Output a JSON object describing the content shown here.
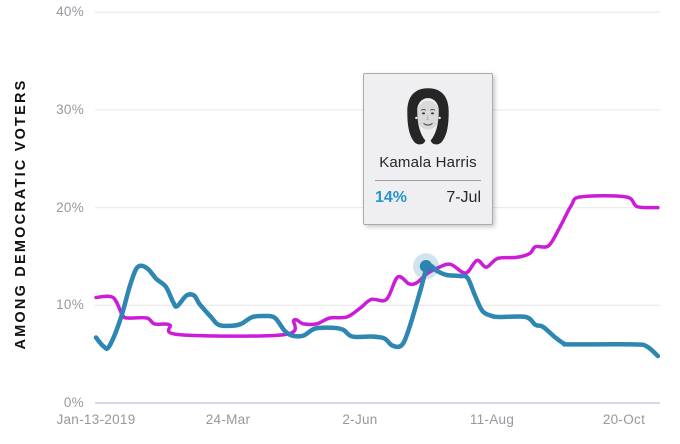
{
  "chart_data": {
    "type": "line",
    "title": "",
    "ylabel": "AMONG DEMOCRATIC VOTERS",
    "xlabel": "",
    "ylim": [
      0,
      40
    ],
    "grid": true,
    "y_ticks": [
      "40%",
      "30%",
      "20%",
      "10%",
      "0%"
    ],
    "y_tick_values": [
      40,
      30,
      20,
      10,
      0
    ],
    "x_unit": "days since Jan-13-2019",
    "x_ticks": [
      {
        "label": "Jan-13-2019",
        "day": 0
      },
      {
        "label": "24-Mar",
        "day": 70
      },
      {
        "label": "2-Jun",
        "day": 140
      },
      {
        "label": "11-Aug",
        "day": 210
      },
      {
        "label": "20-Oct",
        "day": 280
      }
    ],
    "grid_color": "#ececee",
    "zero_line_color": "#d6d9e6",
    "series": [
      {
        "name": "",
        "color": "#cb1dd8",
        "stroke_width": 3.5,
        "points": [
          [
            0,
            10.8
          ],
          [
            9,
            10.8
          ],
          [
            14,
            9.0
          ],
          [
            17,
            8.7
          ],
          [
            27,
            8.7
          ],
          [
            31,
            8.1
          ],
          [
            39,
            8.0
          ],
          [
            44,
            7.0
          ],
          [
            100,
            7.0
          ],
          [
            105,
            8.5
          ],
          [
            110,
            8.1
          ],
          [
            117,
            8.1
          ],
          [
            124,
            8.7
          ],
          [
            133,
            8.8
          ],
          [
            140,
            9.7
          ],
          [
            146,
            10.6
          ],
          [
            154,
            10.6
          ],
          [
            160,
            12.9
          ],
          [
            166,
            12.2
          ],
          [
            170,
            12.3
          ],
          [
            176,
            13.3
          ],
          [
            182,
            13.9
          ],
          [
            188,
            14.2
          ],
          [
            196,
            13.3
          ],
          [
            202,
            14.6
          ],
          [
            207,
            13.9
          ],
          [
            213,
            14.8
          ],
          [
            223,
            14.9
          ],
          [
            230,
            15.3
          ],
          [
            233,
            16.0
          ],
          [
            240,
            16.1
          ],
          [
            246,
            18.0
          ],
          [
            252,
            20.2
          ],
          [
            257,
            21.1
          ],
          [
            281,
            21.1
          ],
          [
            287,
            20.1
          ],
          [
            298,
            20.0
          ]
        ]
      },
      {
        "name": "Kamala Harris",
        "color": "#2e86b3",
        "stroke_width": 4.5,
        "points": [
          [
            0,
            6.7
          ],
          [
            4,
            5.8
          ],
          [
            7,
            5.8
          ],
          [
            13,
            8.6
          ],
          [
            18,
            12.0
          ],
          [
            22,
            13.9
          ],
          [
            27,
            13.8
          ],
          [
            32,
            12.7
          ],
          [
            37,
            11.9
          ],
          [
            41,
            10.3
          ],
          [
            43,
            9.9
          ],
          [
            48,
            11.0
          ],
          [
            52,
            11.0
          ],
          [
            55,
            10.1
          ],
          [
            61,
            8.8
          ],
          [
            65,
            8.0
          ],
          [
            72,
            7.9
          ],
          [
            77,
            8.1
          ],
          [
            83,
            8.8
          ],
          [
            90,
            8.9
          ],
          [
            95,
            8.7
          ],
          [
            100,
            7.4
          ],
          [
            104,
            6.9
          ],
          [
            110,
            6.9
          ],
          [
            116,
            7.6
          ],
          [
            125,
            7.7
          ],
          [
            131,
            7.5
          ],
          [
            136,
            6.8
          ],
          [
            147,
            6.8
          ],
          [
            153,
            6.6
          ],
          [
            157,
            5.9
          ],
          [
            162,
            5.9
          ],
          [
            166,
            7.6
          ],
          [
            172,
            11.5
          ],
          [
            176,
            14.0
          ],
          [
            181,
            13.5
          ],
          [
            186,
            13.1
          ],
          [
            193,
            13.0
          ],
          [
            197,
            12.8
          ],
          [
            201,
            11.0
          ],
          [
            205,
            9.4
          ],
          [
            210,
            8.9
          ],
          [
            214,
            8.8
          ],
          [
            228,
            8.8
          ],
          [
            233,
            8.0
          ],
          [
            237,
            7.8
          ],
          [
            243,
            6.8
          ],
          [
            248,
            6.1
          ],
          [
            252,
            6.0
          ],
          [
            285,
            6.0
          ],
          [
            292,
            5.8
          ],
          [
            298,
            4.8
          ]
        ]
      }
    ],
    "marker": {
      "series": "Kamala Harris",
      "day": 175,
      "value": 14,
      "dot_color": "#2b84b0",
      "halo_color": "rgba(46,134,179,0.22)"
    }
  },
  "tooltip": {
    "name": "Kamala Harris",
    "value": "14%",
    "date": "7-Jul",
    "value_color": "#2696ca",
    "photo": "kamala-harris-portrait"
  }
}
